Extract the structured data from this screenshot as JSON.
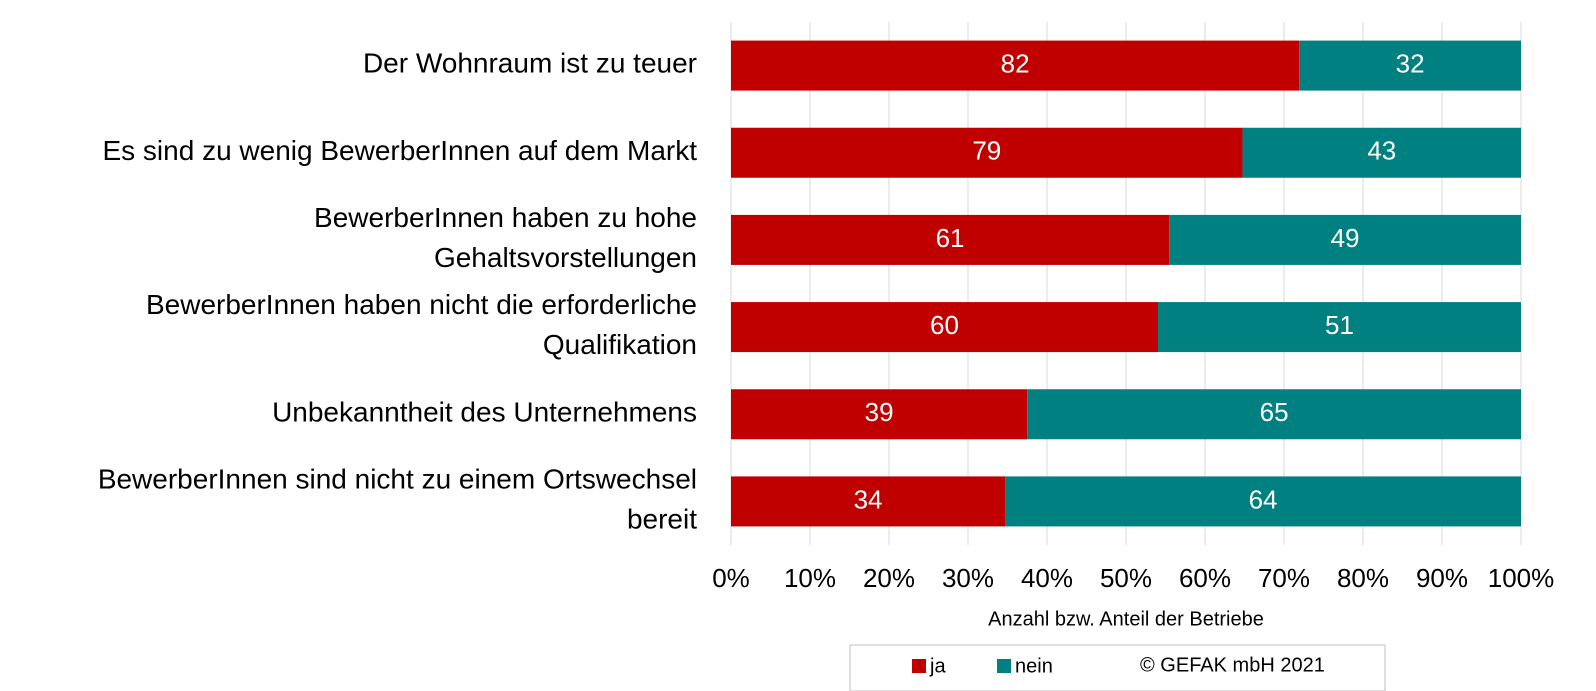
{
  "chart_data": {
    "type": "bar",
    "orientation": "horizontal",
    "stacking": "percent",
    "categories": [
      "Der Wohnraum ist zu teuer",
      "Es sind zu wenig BewerberInnen auf dem Markt",
      "BewerberInnen haben zu hohe\nGehaltsvorstellungen",
      "BewerberInnen haben nicht die erforderliche\nQualifikation",
      "Unbekanntheit des Unternehmens",
      "BewerberInnen sind nicht zu einem Ortswechsel\nbereit"
    ],
    "series": [
      {
        "name": "ja",
        "color": "#c00000",
        "values": [
          82,
          79,
          61,
          60,
          39,
          34
        ]
      },
      {
        "name": "nein",
        "color": "#008080",
        "values": [
          32,
          43,
          49,
          51,
          65,
          64
        ]
      }
    ],
    "xlabel": "Anzahl bzw. Anteil der Betriebe",
    "xlim": [
      0,
      100
    ],
    "xticks": [
      {
        "value": 0,
        "label": "0%"
      },
      {
        "value": 10,
        "label": "10%"
      },
      {
        "value": 20,
        "label": "20%"
      },
      {
        "value": 30,
        "label": "30%"
      },
      {
        "value": 40,
        "label": "40%"
      },
      {
        "value": 50,
        "label": "50%"
      },
      {
        "value": 60,
        "label": "60%"
      },
      {
        "value": 70,
        "label": "70%"
      },
      {
        "value": 80,
        "label": "80%"
      },
      {
        "value": 90,
        "label": "90%"
      },
      {
        "value": 100,
        "label": "100%"
      }
    ],
    "grid": true,
    "legend": "bottom",
    "annotation": "© GEFAK mbH 2021"
  }
}
